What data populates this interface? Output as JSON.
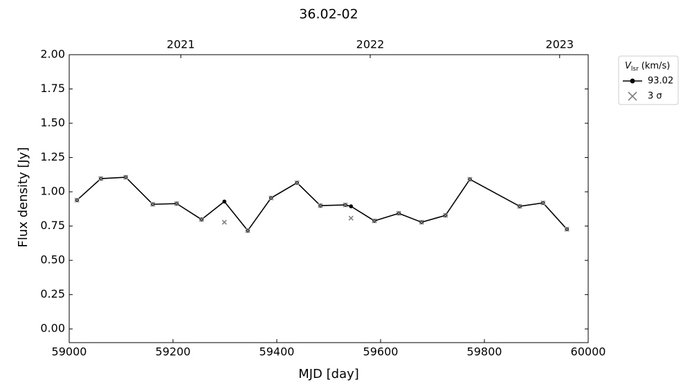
{
  "chart_data": {
    "type": "line",
    "title": "36.02-02",
    "xlabel": "MJD [day]",
    "ylabel": "Flux density [Jy]",
    "xlim": [
      59000,
      60000
    ],
    "xticks": [
      59000,
      59200,
      59400,
      59600,
      59800,
      60000
    ],
    "ylim": [
      -0.1,
      2.0
    ],
    "yticks": [
      {
        "value": 0,
        "label": "0.00"
      },
      {
        "value": 0.25,
        "label": "0.25"
      },
      {
        "value": 0.5,
        "label": "0.50"
      },
      {
        "value": 0.75,
        "label": "0.75"
      },
      {
        "value": 1,
        "label": "1.00"
      },
      {
        "value": 1.25,
        "label": "1.25"
      },
      {
        "value": 1.5,
        "label": "1.50"
      },
      {
        "value": 1.75,
        "label": "1.75"
      },
      {
        "value": 2,
        "label": "2.00"
      }
    ],
    "x2ticks": [
      {
        "value": 59215,
        "label": "2021"
      },
      {
        "value": 59580,
        "label": "2022"
      },
      {
        "value": 59945,
        "label": "2023"
      }
    ],
    "legend_title": {
      "symbol": "V",
      "subscript": "lsr",
      "unit": "(km/s)"
    },
    "legend_position": "outside-upper-right",
    "series": [
      {
        "name": "93.02",
        "color": "#000000",
        "marker": "dot",
        "x": [
          59015,
          59061,
          59109,
          59161,
          59207,
          59255,
          59299,
          59344,
          59389,
          59439,
          59484,
          59532,
          59543,
          59588,
          59635,
          59679,
          59725,
          59772,
          59868,
          59913,
          59959
        ],
        "values": [
          0.939,
          1.096,
          1.106,
          0.909,
          0.914,
          0.798,
          0.929,
          0.717,
          0.955,
          1.066,
          0.899,
          0.904,
          0.894,
          0.788,
          0.843,
          0.778,
          0.828,
          1.091,
          0.894,
          0.919,
          0.727
        ]
      },
      {
        "name": "3 σ",
        "color": "#808080",
        "marker": "cross",
        "x": [
          59015,
          59061,
          59109,
          59161,
          59207,
          59255,
          59299,
          59344,
          59389,
          59439,
          59484,
          59532,
          59543,
          59588,
          59635,
          59679,
          59725,
          59772,
          59868,
          59913,
          59959
        ],
        "values": [
          0.939,
          1.096,
          1.106,
          0.909,
          0.914,
          0.798,
          0.778,
          0.717,
          0.955,
          1.066,
          0.899,
          0.904,
          0.808,
          0.788,
          0.843,
          0.778,
          0.828,
          1.091,
          0.894,
          0.919,
          0.727
        ]
      }
    ]
  }
}
